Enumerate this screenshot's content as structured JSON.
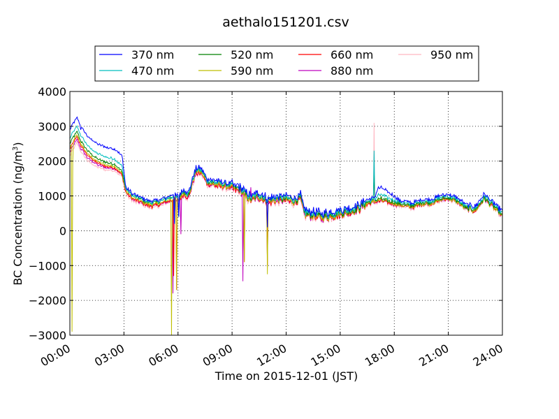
{
  "chart_data": {
    "type": "line",
    "title": "aethalo151201.csv",
    "xlabel": "Time on 2015-12-01 (JST)",
    "ylabel_main": "BC Concentration (ng/m",
    "ylabel_sup": "3",
    "ylabel_close": ")",
    "x_unit": "hours",
    "xlim": [
      0,
      24
    ],
    "ylim": [
      -3000,
      4000
    ],
    "x_ticks": [
      0,
      3,
      6,
      9,
      12,
      15,
      18,
      21,
      24
    ],
    "x_tick_labels": [
      "00:00",
      "03:00",
      "06:00",
      "09:00",
      "12:00",
      "15:00",
      "18:00",
      "21:00",
      "24:00"
    ],
    "y_ticks": [
      -3000,
      -2000,
      -1000,
      0,
      1000,
      2000,
      3000,
      4000
    ],
    "y_tick_labels": [
      "−3000",
      "−2000",
      "−1000",
      "0",
      "1000",
      "2000",
      "3000",
      "4000"
    ],
    "grid": true,
    "legend_position": "top, above plot, 4 columns",
    "series": [
      {
        "name": "370 nm",
        "color": "#0000ff"
      },
      {
        "name": "470 nm",
        "color": "#00bfbf"
      },
      {
        "name": "520 nm",
        "color": "#008000"
      },
      {
        "name": "590 nm",
        "color": "#bfbf00"
      },
      {
        "name": "660 nm",
        "color": "#ff0000"
      },
      {
        "name": "880 nm",
        "color": "#bf00bf"
      },
      {
        "name": "950 nm",
        "color": "#ffb6c1"
      }
    ],
    "base_profile": [
      [
        0,
        2400
      ],
      [
        0.2,
        2600
      ],
      [
        0.4,
        2750
      ],
      [
        0.6,
        2500
      ],
      [
        1.0,
        2200
      ],
      [
        1.5,
        2000
      ],
      [
        2.0,
        1900
      ],
      [
        2.5,
        1850
      ],
      [
        2.9,
        1650
      ],
      [
        3.1,
        1150
      ],
      [
        3.5,
        950
      ],
      [
        4.0,
        850
      ],
      [
        4.5,
        750
      ],
      [
        5.0,
        800
      ],
      [
        5.5,
        900
      ],
      [
        5.8,
        950
      ],
      [
        6.0,
        900
      ],
      [
        6.3,
        1100
      ],
      [
        6.6,
        1000
      ],
      [
        6.8,
        1400
      ],
      [
        7.0,
        1700
      ],
      [
        7.3,
        1700
      ],
      [
        7.6,
        1400
      ],
      [
        8.0,
        1350
      ],
      [
        8.5,
        1300
      ],
      [
        9.0,
        1250
      ],
      [
        9.5,
        1150
      ],
      [
        9.8,
        1000
      ],
      [
        10.0,
        900
      ],
      [
        10.5,
        1000
      ],
      [
        11.0,
        850
      ],
      [
        11.5,
        900
      ],
      [
        12.0,
        900
      ],
      [
        12.5,
        850
      ],
      [
        12.8,
        950
      ],
      [
        13.0,
        500
      ],
      [
        13.5,
        450
      ],
      [
        14.0,
        400
      ],
      [
        14.5,
        450
      ],
      [
        15.0,
        500
      ],
      [
        15.5,
        550
      ],
      [
        16.0,
        650
      ],
      [
        16.5,
        800
      ],
      [
        16.9,
        850
      ],
      [
        17.3,
        900
      ],
      [
        17.6,
        850
      ],
      [
        18.0,
        800
      ],
      [
        18.5,
        750
      ],
      [
        19.0,
        700
      ],
      [
        19.5,
        800
      ],
      [
        20.0,
        800
      ],
      [
        20.5,
        900
      ],
      [
        21.0,
        950
      ],
      [
        21.5,
        850
      ],
      [
        22.0,
        650
      ],
      [
        22.5,
        600
      ],
      [
        23.0,
        950
      ],
      [
        23.5,
        700
      ],
      [
        24.0,
        450
      ]
    ],
    "series_offsets": [
      [
        [
          0,
          500
        ],
        [
          2.9,
          500
        ],
        [
          3.1,
          100
        ],
        [
          16.9,
          100
        ],
        [
          17.1,
          350
        ],
        [
          17.8,
          250
        ],
        [
          18.3,
          100
        ],
        [
          24,
          100
        ]
      ],
      [
        [
          0,
          250
        ],
        [
          2.9,
          200
        ],
        [
          3.1,
          50
        ],
        [
          16.9,
          50
        ],
        [
          17.1,
          150
        ],
        [
          18.3,
          50
        ],
        [
          24,
          50
        ]
      ],
      [
        [
          0,
          100
        ],
        [
          3.0,
          50
        ],
        [
          24,
          0
        ]
      ],
      [
        [
          0,
          0
        ],
        [
          24,
          -30
        ]
      ],
      [
        [
          0,
          -50
        ],
        [
          24,
          -30
        ]
      ],
      [
        [
          0,
          -150
        ],
        [
          3.0,
          -50
        ],
        [
          24,
          -30
        ]
      ],
      [
        [
          0,
          -250
        ],
        [
          3.0,
          -100
        ],
        [
          24,
          -50
        ]
      ]
    ],
    "spikes": [
      {
        "series": [
          3
        ],
        "at": 0.1,
        "value": -2900
      },
      {
        "series": [
          3
        ],
        "at": 0.15,
        "value": 2000
      },
      {
        "series": [
          0
        ],
        "at": 0.6,
        "value": 2900
      },
      {
        "series": [
          3
        ],
        "at": 5.65,
        "value": -3000
      },
      {
        "series": [
          5
        ],
        "at": 5.7,
        "value": -1800
      },
      {
        "series": [
          4
        ],
        "at": 5.75,
        "value": -1300
      },
      {
        "series": [
          0,
          1,
          2
        ],
        "at": 5.8,
        "value": 200
      },
      {
        "series": [
          3,
          4,
          6
        ],
        "at": 5.9,
        "value": -1700
      },
      {
        "series": [
          0,
          1,
          2
        ],
        "at": 6.05,
        "value": 400
      },
      {
        "series": [
          5,
          6
        ],
        "at": 6.15,
        "value": -100
      },
      {
        "series": [
          5
        ],
        "at": 9.6,
        "value": -1450
      },
      {
        "series": [
          3,
          4
        ],
        "at": 9.7,
        "value": -900
      },
      {
        "series": [
          5
        ],
        "at": 10.05,
        "value": 1250
      },
      {
        "series": [
          3
        ],
        "at": 10.95,
        "value": -1250
      },
      {
        "series": [
          4,
          5
        ],
        "at": 10.95,
        "value": -1000
      },
      {
        "series": [
          0
        ],
        "at": 10.95,
        "value": 100
      },
      {
        "series": [
          5
        ],
        "at": 12.9,
        "value": 900
      },
      {
        "series": [
          6
        ],
        "at": 16.9,
        "value": 3100
      },
      {
        "series": [
          1
        ],
        "at": 16.9,
        "value": 2300
      },
      {
        "series": [
          2,
          4
        ],
        "at": 16.9,
        "value": 1700
      }
    ]
  }
}
